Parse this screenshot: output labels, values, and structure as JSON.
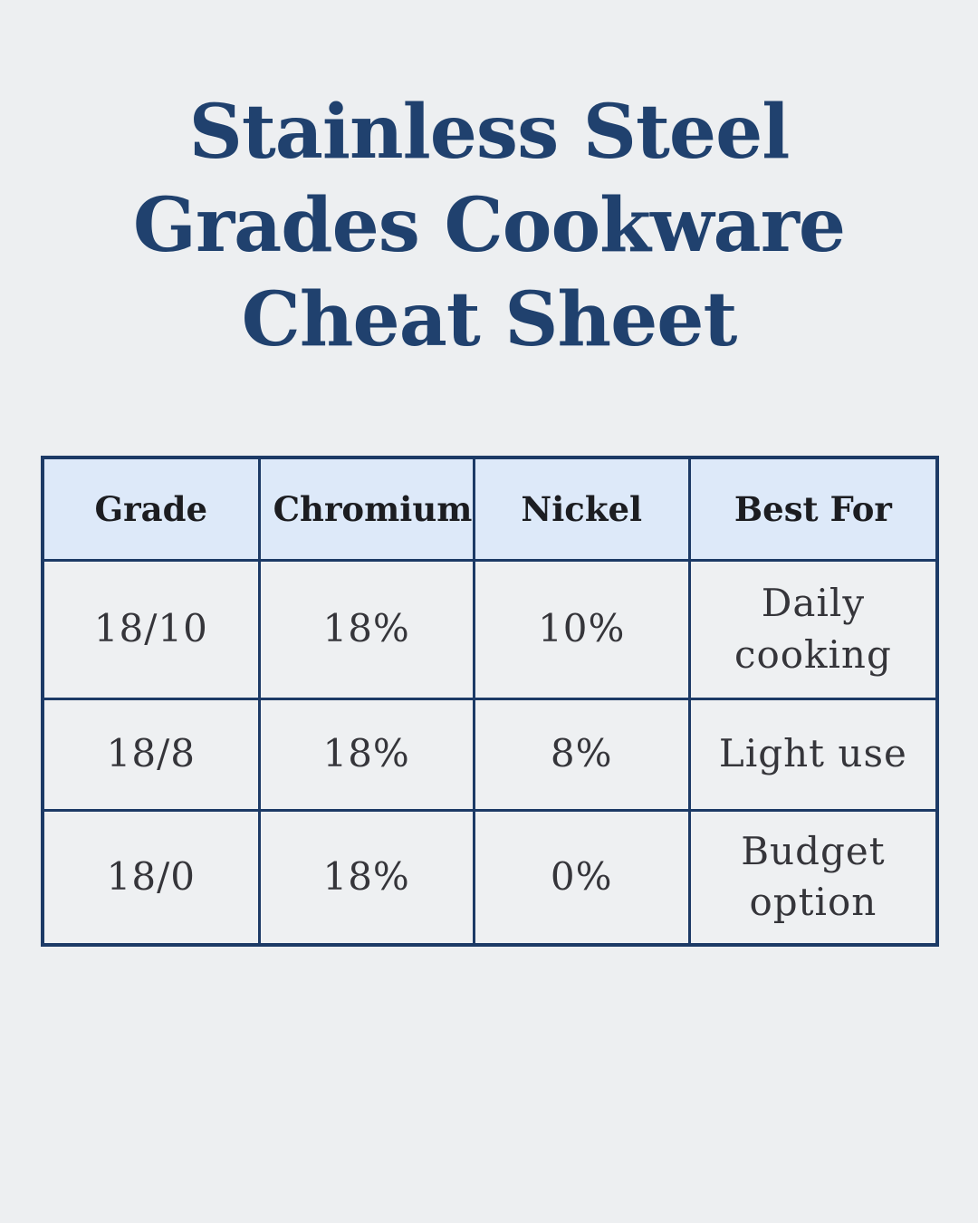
{
  "title": {
    "lines": [
      "Stainless Steel",
      "Grades Cookware",
      "Cheat Sheet"
    ]
  },
  "colors": {
    "page_background": "#edeff1",
    "title_navy": "#20416e",
    "table_border_navy": "#1c3a66",
    "header_row_background": "#dde9f9",
    "data_cell_background": "#eef0f2",
    "header_text": "#1c1d21",
    "data_text": "#35353a"
  },
  "table": {
    "headers": [
      "Grade",
      "Chromium",
      "Nickel",
      "Best For"
    ],
    "rows": [
      {
        "grade": "18/10",
        "chromium": "18%",
        "nickel": "10%",
        "best_for": "Daily cooking"
      },
      {
        "grade": "18/8",
        "chromium": "18%",
        "nickel": "8%",
        "best_for": "Light use"
      },
      {
        "grade": "18/0",
        "chromium": "18%",
        "nickel": "0%",
        "best_for": "Budget option"
      }
    ]
  },
  "chart_data": {
    "type": "table",
    "title": "Stainless Steel Grades Cookware Cheat Sheet",
    "columns": [
      "Grade",
      "Chromium",
      "Nickel",
      "Best For"
    ],
    "rows": [
      [
        "18/10",
        "18%",
        "10%",
        "Daily cooking"
      ],
      [
        "18/8",
        "18%",
        "8%",
        "Light use"
      ],
      [
        "18/0",
        "18%",
        "0%",
        "Budget option"
      ]
    ]
  }
}
